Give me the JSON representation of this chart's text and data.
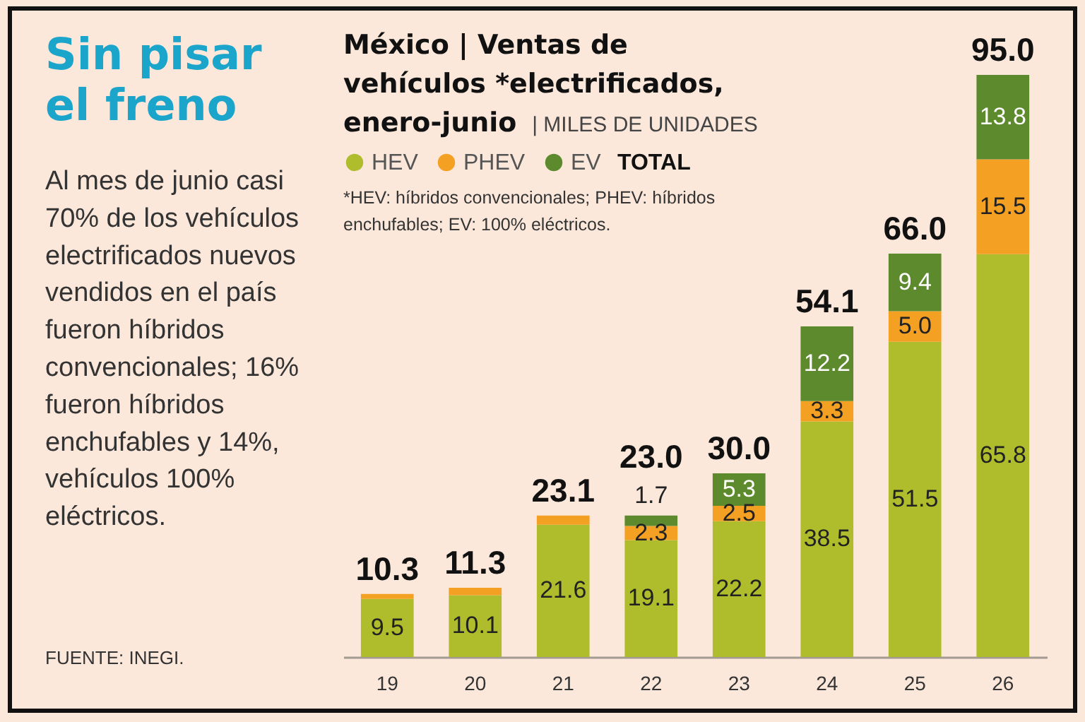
{
  "chart_data": {
    "type": "bar",
    "stacked": true,
    "title": "Sin pisar el freno",
    "subtitle": "Al mes de junio casi 70% de los vehículos electrificados nuevos vendidos en el país fueron híbridos convencionales; 16% fueron híbridos enchufables y 14%, vehículos 100% eléctricos.",
    "annotations": [
      "México | Ventas de vehículos *electrificados, enero-junio | MILES DE UNIDADES",
      "*HEV: híbridos convencionales; PHEV: híbridos enchufables; EV: 100% eléctricos.",
      "FUENTE: INEGI."
    ],
    "categories": [
      "19",
      "20",
      "21",
      "22",
      "23",
      "24",
      "25",
      "26"
    ],
    "series": [
      {
        "name": "HEV",
        "color": "#afbd2c",
        "values": [
          9.5,
          10.1,
          21.6,
          19.1,
          22.2,
          38.5,
          51.5,
          65.8
        ],
        "value_labels": [
          "9.5",
          "10.1",
          "21.6",
          "19.1",
          "22.2",
          "38.5",
          "51.5",
          "65.8"
        ]
      },
      {
        "name": "PHEV",
        "color": "#f4a023",
        "values": [
          0.8,
          1.2,
          1.5,
          2.3,
          2.5,
          3.3,
          5.0,
          15.5
        ],
        "value_labels": [
          null,
          null,
          null,
          "2.3",
          "2.5",
          "3.3",
          "5.0",
          "15.5"
        ]
      },
      {
        "name": "EV",
        "color": "#5e8a2e",
        "values": [
          null,
          null,
          null,
          1.7,
          5.3,
          12.2,
          9.4,
          13.8
        ],
        "value_labels": [
          null,
          null,
          null,
          "1.7",
          "5.3",
          "12.2",
          "9.4",
          "13.8"
        ]
      }
    ],
    "totals": [
      "10.3",
      "11.3",
      "23.1",
      "23.0",
      "30.0",
      "54.1",
      "66.0",
      "95.0"
    ],
    "legend": "top left",
    "legend_title": "TOTAL"
  }
}
